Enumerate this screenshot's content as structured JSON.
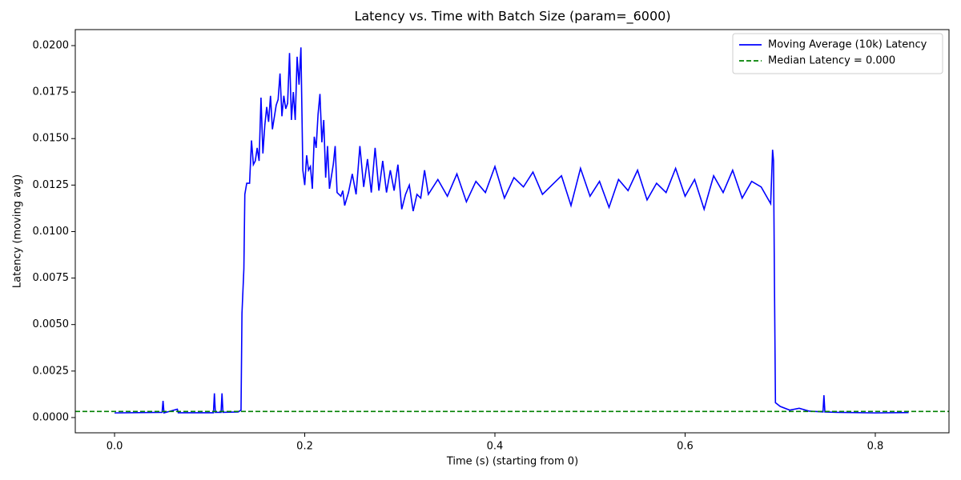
{
  "chart_data": {
    "type": "line",
    "title": "Latency vs. Time with Batch Size (param=_6000)",
    "x_label": "Time (s) (starting from 0)",
    "y_label": "Latency (moving avg)",
    "x": [
      0,
      0.05,
      0.051,
      0.052,
      0.066,
      0.067,
      0.104,
      0.105,
      0.106,
      0.112,
      0.113,
      0.114,
      0.13,
      0.133,
      0.134,
      0.136,
      0.137,
      0.139,
      0.142,
      0.144,
      0.146,
      0.148,
      0.15,
      0.152,
      0.154,
      0.156,
      0.158,
      0.16,
      0.162,
      0.164,
      0.166,
      0.17,
      0.172,
      0.174,
      0.176,
      0.178,
      0.18,
      0.182,
      0.184,
      0.186,
      0.188,
      0.19,
      0.192,
      0.194,
      0.196,
      0.198,
      0.2,
      0.202,
      0.204,
      0.206,
      0.208,
      0.21,
      0.212,
      0.214,
      0.216,
      0.218,
      0.22,
      0.222,
      0.224,
      0.226,
      0.23,
      0.232,
      0.234,
      0.238,
      0.24,
      0.242,
      0.246,
      0.25,
      0.254,
      0.258,
      0.262,
      0.266,
      0.27,
      0.274,
      0.278,
      0.282,
      0.286,
      0.29,
      0.294,
      0.298,
      0.302,
      0.306,
      0.31,
      0.314,
      0.318,
      0.322,
      0.326,
      0.33,
      0.34,
      0.35,
      0.36,
      0.37,
      0.38,
      0.39,
      0.4,
      0.41,
      0.42,
      0.43,
      0.44,
      0.45,
      0.46,
      0.47,
      0.48,
      0.49,
      0.5,
      0.51,
      0.52,
      0.53,
      0.54,
      0.55,
      0.56,
      0.57,
      0.58,
      0.59,
      0.6,
      0.61,
      0.62,
      0.63,
      0.64,
      0.65,
      0.66,
      0.67,
      0.68,
      0.69,
      0.692,
      0.693,
      0.694,
      0.695,
      0.7,
      0.71,
      0.72,
      0.73,
      0.745,
      0.746,
      0.747,
      0.76,
      0.8,
      0.835
    ],
    "series": [
      {
        "name": "Moving Average (10k) Latency",
        "color": "#0000ff",
        "values": [
          0.00025,
          0.00028,
          0.0009,
          0.00025,
          0.00045,
          0.00026,
          0.00026,
          0.0013,
          0.00028,
          0.00028,
          0.0013,
          0.00028,
          0.0003,
          0.0004,
          0.0056,
          0.008,
          0.012,
          0.0126,
          0.0126,
          0.0149,
          0.0136,
          0.0138,
          0.0145,
          0.0138,
          0.0172,
          0.0142,
          0.0157,
          0.0167,
          0.0159,
          0.0173,
          0.0155,
          0.0168,
          0.0171,
          0.0185,
          0.0162,
          0.0173,
          0.0166,
          0.0169,
          0.0196,
          0.016,
          0.0175,
          0.016,
          0.0194,
          0.0179,
          0.0199,
          0.0133,
          0.0125,
          0.0141,
          0.0133,
          0.0135,
          0.0123,
          0.0151,
          0.0145,
          0.0163,
          0.0174,
          0.0148,
          0.016,
          0.0129,
          0.0146,
          0.0123,
          0.0136,
          0.0146,
          0.0121,
          0.0119,
          0.0122,
          0.0114,
          0.0121,
          0.0131,
          0.012,
          0.0146,
          0.0124,
          0.0139,
          0.0121,
          0.0145,
          0.0122,
          0.0138,
          0.0121,
          0.0133,
          0.0122,
          0.0136,
          0.0112,
          0.012,
          0.0125,
          0.0111,
          0.012,
          0.0118,
          0.0133,
          0.012,
          0.0128,
          0.0119,
          0.0131,
          0.0116,
          0.0127,
          0.0121,
          0.0135,
          0.0118,
          0.0129,
          0.0124,
          0.0132,
          0.012,
          0.0125,
          0.013,
          0.0114,
          0.0134,
          0.0119,
          0.0127,
          0.0113,
          0.0128,
          0.0122,
          0.0133,
          0.0117,
          0.0126,
          0.0121,
          0.0134,
          0.0119,
          0.0128,
          0.0112,
          0.013,
          0.0121,
          0.0133,
          0.0118,
          0.0127,
          0.0124,
          0.0115,
          0.0144,
          0.0138,
          0.007,
          0.0008,
          0.0006,
          0.0004,
          0.0005,
          0.00035,
          0.0003,
          0.0012,
          0.0003,
          0.00028,
          0.00025,
          0.00027
        ]
      }
    ],
    "hlines": [
      {
        "name": "Median Latency = 0.000",
        "color": "#008000",
        "value": 0.00033,
        "style": "dashed"
      }
    ],
    "xlim": [
      -0.0413,
      0.8775
    ],
    "ylim": [
      -0.00082,
      0.02086
    ],
    "xticks": [
      {
        "value": 0,
        "label": "0.0"
      },
      {
        "value": 0.2,
        "label": "0.2"
      },
      {
        "value": 0.4,
        "label": "0.4"
      },
      {
        "value": 0.6,
        "label": "0.6"
      },
      {
        "value": 0.8,
        "label": "0.8"
      }
    ],
    "yticks": [
      {
        "value": 0,
        "label": "0.0000"
      },
      {
        "value": 0.0025,
        "label": "0.0025"
      },
      {
        "value": 0.005,
        "label": "0.0050"
      },
      {
        "value": 0.0075,
        "label": "0.0075"
      },
      {
        "value": 0.01,
        "label": "0.0100"
      },
      {
        "value": 0.0125,
        "label": "0.0125"
      },
      {
        "value": 0.015,
        "label": "0.0150"
      },
      {
        "value": 0.0175,
        "label": "0.0175"
      },
      {
        "value": 0.02,
        "label": "0.0200"
      }
    ],
    "grid": false,
    "legend": "upper right"
  }
}
